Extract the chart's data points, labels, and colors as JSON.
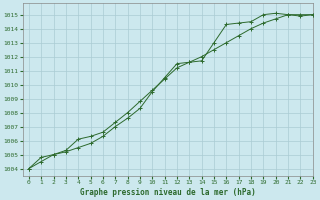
{
  "title": "Graphe pression niveau de la mer (hPa)",
  "bg_color": "#cce8ee",
  "line_color": "#2d6a2d",
  "grid_color": "#aaccd4",
  "xlim": [
    -0.5,
    23
  ],
  "ylim": [
    1003.5,
    1015.8
  ],
  "xticks": [
    0,
    1,
    2,
    3,
    4,
    5,
    6,
    7,
    8,
    9,
    10,
    11,
    12,
    13,
    14,
    15,
    16,
    17,
    18,
    19,
    20,
    21,
    22,
    23
  ],
  "yticks": [
    1004,
    1005,
    1006,
    1007,
    1008,
    1009,
    1010,
    1011,
    1012,
    1013,
    1014,
    1015
  ],
  "series1_x": [
    0,
    1,
    2,
    3,
    4,
    5,
    6,
    7,
    8,
    9,
    10,
    11,
    12,
    13,
    14,
    15,
    16,
    17,
    18,
    19,
    20,
    21,
    22,
    23
  ],
  "series1_y": [
    1004.0,
    1004.8,
    1005.0,
    1005.2,
    1005.5,
    1005.8,
    1006.3,
    1007.0,
    1007.6,
    1008.3,
    1009.5,
    1010.5,
    1011.5,
    1011.6,
    1011.7,
    1013.0,
    1014.3,
    1014.4,
    1014.5,
    1015.0,
    1015.1,
    1015.0,
    1014.9,
    1015.0
  ],
  "series2_x": [
    0,
    1,
    2,
    3,
    4,
    5,
    6,
    7,
    8,
    9,
    10,
    11,
    12,
    13,
    14,
    15,
    16,
    17,
    18,
    19,
    20,
    21,
    22,
    23
  ],
  "series2_y": [
    1004.0,
    1004.5,
    1005.0,
    1005.3,
    1006.1,
    1006.3,
    1006.6,
    1007.3,
    1008.0,
    1008.8,
    1009.6,
    1010.4,
    1011.2,
    1011.6,
    1012.0,
    1012.5,
    1013.0,
    1013.5,
    1014.0,
    1014.4,
    1014.7,
    1015.0,
    1015.0,
    1015.0
  ]
}
